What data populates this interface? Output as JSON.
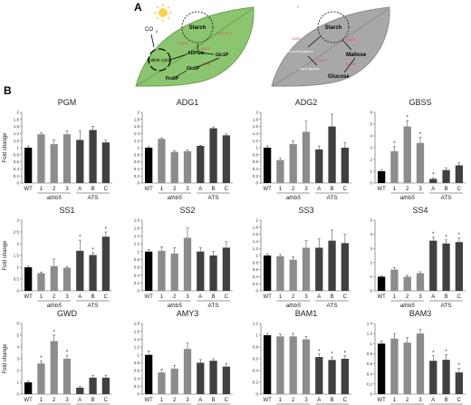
{
  "panel_labels": {
    "a": "A",
    "b": "B"
  },
  "diagram_day": {
    "co2_label": "CO",
    "co2_sub": "2",
    "starch_label": "Starch",
    "cycle_label": "Calvin cycle",
    "adpglc_label": "ADPGlc",
    "glc1p_label": "Glc1P",
    "glc6p_label": "Glc6P",
    "fru6p_label": "Fru6P",
    "enzyme_labels": [
      "PGM",
      "ADG1",
      "SS1-SS4",
      "GBSS"
    ],
    "colors": {
      "leaf": "#8cc56f",
      "enzyme": "#e05555"
    },
    "icon": "sun-icon"
  },
  "diagram_night": {
    "starch_label": "Starch",
    "maltose_label": "Maltose",
    "glucose_label": "Glucose",
    "branched_label": "Branched glucans",
    "linear_label": "Linear glucans",
    "enzyme_labels": [
      "GWD",
      "AMY3",
      "BAM1",
      "BAM3"
    ],
    "colors": {
      "leaf": "#a8a8a8",
      "enzyme": "#e05555"
    },
    "icon": "moon-icon"
  },
  "chart_data": [
    {
      "type": "bar",
      "title": "PGM",
      "ylabel": "Fold change",
      "ylim": [
        0,
        2
      ],
      "ticks": [
        0,
        0.2,
        0.4,
        0.6,
        0.8,
        1,
        1.2,
        1.4,
        1.6,
        1.8,
        2
      ],
      "categories": [
        "WT",
        "1",
        "2",
        "3",
        "A",
        "B",
        "C"
      ],
      "values": [
        1.0,
        1.38,
        1.1,
        1.38,
        1.22,
        1.5,
        1.15
      ],
      "errors": [
        0.05,
        0.04,
        0.12,
        0.1,
        0.25,
        0.1,
        0.06
      ],
      "stars": [],
      "groups": [
        "athb5",
        "ATS"
      ]
    },
    {
      "type": "bar",
      "title": "ADG1",
      "ylabel": "",
      "ylim": [
        0,
        2
      ],
      "ticks": [
        0,
        0.2,
        0.4,
        0.6,
        0.8,
        1,
        1.2,
        1.4,
        1.6,
        1.8,
        2
      ],
      "categories": [
        "WT",
        "1",
        "2",
        "3",
        "A",
        "B",
        "C"
      ],
      "values": [
        1.0,
        1.25,
        0.88,
        0.9,
        1.05,
        1.55,
        1.35
      ],
      "errors": [
        0.03,
        0.03,
        0.03,
        0.04,
        0.02,
        0.04,
        0.04
      ],
      "stars": [],
      "groups": [
        "athb5",
        "ATS"
      ]
    },
    {
      "type": "bar",
      "title": "ADG2",
      "ylabel": "",
      "ylim": [
        0,
        2
      ],
      "ticks": [
        0,
        0.2,
        0.4,
        0.6,
        0.8,
        1,
        1.2,
        1.4,
        1.6,
        1.8,
        2
      ],
      "categories": [
        "WT",
        "1",
        "2",
        "3",
        "A",
        "B",
        "C"
      ],
      "values": [
        1.0,
        0.65,
        1.1,
        1.45,
        0.95,
        1.6,
        1.0
      ],
      "errors": [
        0.05,
        0.05,
        0.1,
        0.3,
        0.1,
        0.35,
        0.15
      ],
      "stars": [],
      "groups": [
        "athb5",
        "ATS"
      ]
    },
    {
      "type": "bar",
      "title": "GBSS",
      "ylabel": "",
      "ylim": [
        0,
        6
      ],
      "ticks": [
        0,
        1,
        2,
        3,
        4,
        5,
        6
      ],
      "categories": [
        "WT",
        "1",
        "2",
        "3",
        "A",
        "B",
        "C"
      ],
      "values": [
        1.0,
        2.7,
        4.8,
        3.4,
        0.35,
        1.1,
        1.5
      ],
      "errors": [
        0.1,
        0.4,
        0.5,
        0.5,
        0.1,
        0.2,
        0.2
      ],
      "stars": [
        1,
        2,
        3,
        4
      ],
      "groups": [
        "athb5",
        "ATS"
      ]
    },
    {
      "type": "bar",
      "title": "SS1",
      "ylabel": "Fold change",
      "ylim": [
        0,
        3
      ],
      "ticks": [
        0,
        0.5,
        1,
        1.5,
        2,
        2.5,
        3
      ],
      "categories": [
        "WT",
        "1",
        "2",
        "3",
        "A",
        "B",
        "C"
      ],
      "values": [
        1.0,
        0.75,
        1.05,
        0.98,
        1.7,
        1.52,
        2.3
      ],
      "errors": [
        0.05,
        0.05,
        0.3,
        0.05,
        0.45,
        0.1,
        0.2
      ],
      "stars": [
        4,
        5,
        6
      ],
      "groups": [
        "athb5",
        "ATS"
      ]
    },
    {
      "type": "bar",
      "title": "SS2",
      "ylabel": "",
      "ylim": [
        0,
        1.8
      ],
      "ticks": [
        0,
        0.2,
        0.4,
        0.6,
        0.8,
        1,
        1.2,
        1.4,
        1.6,
        1.8
      ],
      "categories": [
        "WT",
        "1",
        "2",
        "3",
        "A",
        "B",
        "C"
      ],
      "values": [
        1.0,
        1.02,
        0.95,
        1.35,
        1.0,
        0.9,
        1.1
      ],
      "errors": [
        0.05,
        0.1,
        0.15,
        0.25,
        0.1,
        0.1,
        0.15
      ],
      "stars": [],
      "groups": [
        "athb5",
        "ATS"
      ]
    },
    {
      "type": "bar",
      "title": "SS3",
      "ylabel": "",
      "ylim": [
        0,
        2
      ],
      "ticks": [
        0,
        0.2,
        0.4,
        0.6,
        0.8,
        1,
        1.2,
        1.4,
        1.6,
        1.8,
        2
      ],
      "categories": [
        "WT",
        "1",
        "2",
        "3",
        "A",
        "B",
        "C"
      ],
      "values": [
        1.0,
        0.98,
        0.88,
        1.22,
        1.22,
        1.42,
        1.35
      ],
      "errors": [
        0.05,
        0.05,
        0.08,
        0.2,
        0.25,
        0.3,
        0.25
      ],
      "stars": [],
      "groups": [
        "athb5",
        "ATS"
      ]
    },
    {
      "type": "bar",
      "title": "SS4",
      "ylabel": "",
      "ylim": [
        0,
        5
      ],
      "ticks": [
        0,
        1,
        2,
        3,
        4,
        5
      ],
      "categories": [
        "WT",
        "1",
        "2",
        "3",
        "A",
        "B",
        "C"
      ],
      "values": [
        1.0,
        1.5,
        1.0,
        1.25,
        3.55,
        3.35,
        3.45
      ],
      "errors": [
        0.05,
        0.15,
        0.1,
        0.1,
        0.25,
        0.25,
        0.3
      ],
      "stars": [
        4,
        5,
        6
      ],
      "groups": [
        "athb5",
        "ATS"
      ]
    },
    {
      "type": "bar",
      "title": "GWD",
      "ylabel": "Fold change",
      "ylim": [
        0,
        6
      ],
      "ticks": [
        0,
        1,
        2,
        3,
        4,
        5,
        6
      ],
      "categories": [
        "WT",
        "1",
        "2",
        "3",
        "A",
        "B",
        "C"
      ],
      "values": [
        1.0,
        2.6,
        4.5,
        3.0,
        0.55,
        1.4,
        1.4
      ],
      "errors": [
        0.1,
        0.2,
        0.5,
        0.3,
        0.1,
        0.2,
        0.2
      ],
      "stars": [
        1,
        2,
        3
      ],
      "groups": [
        "athb5",
        "ATS"
      ]
    },
    {
      "type": "bar",
      "title": "AMY3",
      "ylabel": "",
      "ylim": [
        0,
        1.8
      ],
      "ticks": [
        0,
        0.2,
        0.4,
        0.6,
        0.8,
        1,
        1.2,
        1.4,
        1.6,
        1.8
      ],
      "categories": [
        "WT",
        "1",
        "2",
        "3",
        "A",
        "B",
        "C"
      ],
      "values": [
        1.0,
        0.55,
        0.65,
        1.15,
        0.8,
        0.85,
        0.7
      ],
      "errors": [
        0.1,
        0.08,
        0.08,
        0.15,
        0.08,
        0.05,
        0.08
      ],
      "stars": [],
      "groups": [
        "athb5",
        "ATS"
      ]
    },
    {
      "type": "bar",
      "title": "BAM1",
      "ylabel": "",
      "ylim": [
        0,
        1.2
      ],
      "ticks": [
        0,
        0.2,
        0.4,
        0.6,
        0.8,
        1,
        1.2
      ],
      "categories": [
        "WT",
        "1",
        "2",
        "3",
        "A",
        "B",
        "C"
      ],
      "values": [
        1.0,
        0.98,
        0.98,
        0.93,
        0.63,
        0.58,
        0.6
      ],
      "errors": [
        0.03,
        0.04,
        0.05,
        0.05,
        0.05,
        0.05,
        0.05
      ],
      "stars": [
        4,
        5,
        6
      ],
      "groups": [
        "athb5",
        "ATS"
      ]
    },
    {
      "type": "bar",
      "title": "BAM3",
      "ylabel": "",
      "ylim": [
        0,
        1.4
      ],
      "ticks": [
        0,
        0.2,
        0.4,
        0.6,
        0.8,
        1,
        1.2,
        1.4
      ],
      "categories": [
        "WT",
        "1",
        "2",
        "3",
        "A",
        "B",
        "C"
      ],
      "values": [
        1.0,
        1.1,
        1.02,
        1.2,
        0.66,
        0.68,
        0.43
      ],
      "errors": [
        0.05,
        0.1,
        0.1,
        0.08,
        0.1,
        0.1,
        0.08
      ],
      "stars": [
        4,
        5,
        6
      ],
      "groups": [
        "athb5",
        "ATS"
      ]
    }
  ],
  "colors": {
    "wt_bar": "#000000",
    "athb5_bar": "#8c8c8c",
    "ats_bar": "#404040",
    "axis": "#555555"
  }
}
